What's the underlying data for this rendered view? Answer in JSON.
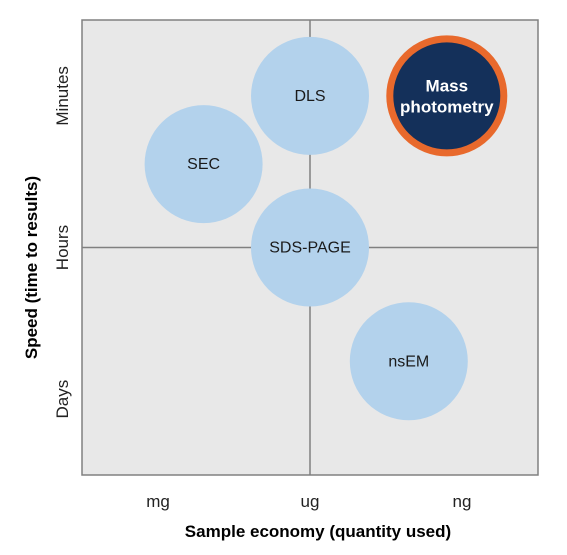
{
  "chart_data": {
    "type": "bubble-quadrant",
    "xlabel": "Sample economy (quantity used)",
    "ylabel": "Speed (time to results)",
    "x_ticks": [
      "mg",
      "ug",
      "ng"
    ],
    "y_ticks": [
      "Days",
      "Hours",
      "Minutes"
    ],
    "xlim": [
      0,
      3
    ],
    "ylim": [
      0,
      3
    ],
    "grid": "center lines only",
    "points": [
      {
        "label_lines": [
          "DLS"
        ],
        "x": 1.5,
        "y": 2.5,
        "highlight": false
      },
      {
        "label_lines": [
          "SEC"
        ],
        "x": 0.8,
        "y": 2.05,
        "highlight": false
      },
      {
        "label_lines": [
          "SDS-PAGE"
        ],
        "x": 1.5,
        "y": 1.5,
        "highlight": false
      },
      {
        "label_lines": [
          "nsEM"
        ],
        "x": 2.15,
        "y": 0.75,
        "highlight": false
      },
      {
        "label_lines": [
          "Mass",
          "photometry"
        ],
        "x": 2.4,
        "y": 2.5,
        "highlight": true
      }
    ],
    "colors": {
      "background": "#e8e8e8",
      "bubble": "#b3d2ec",
      "highlight_fill": "#14305a",
      "highlight_stroke": "#e8692c",
      "highlight_text": "#ffffff",
      "frame": "#808080"
    }
  }
}
